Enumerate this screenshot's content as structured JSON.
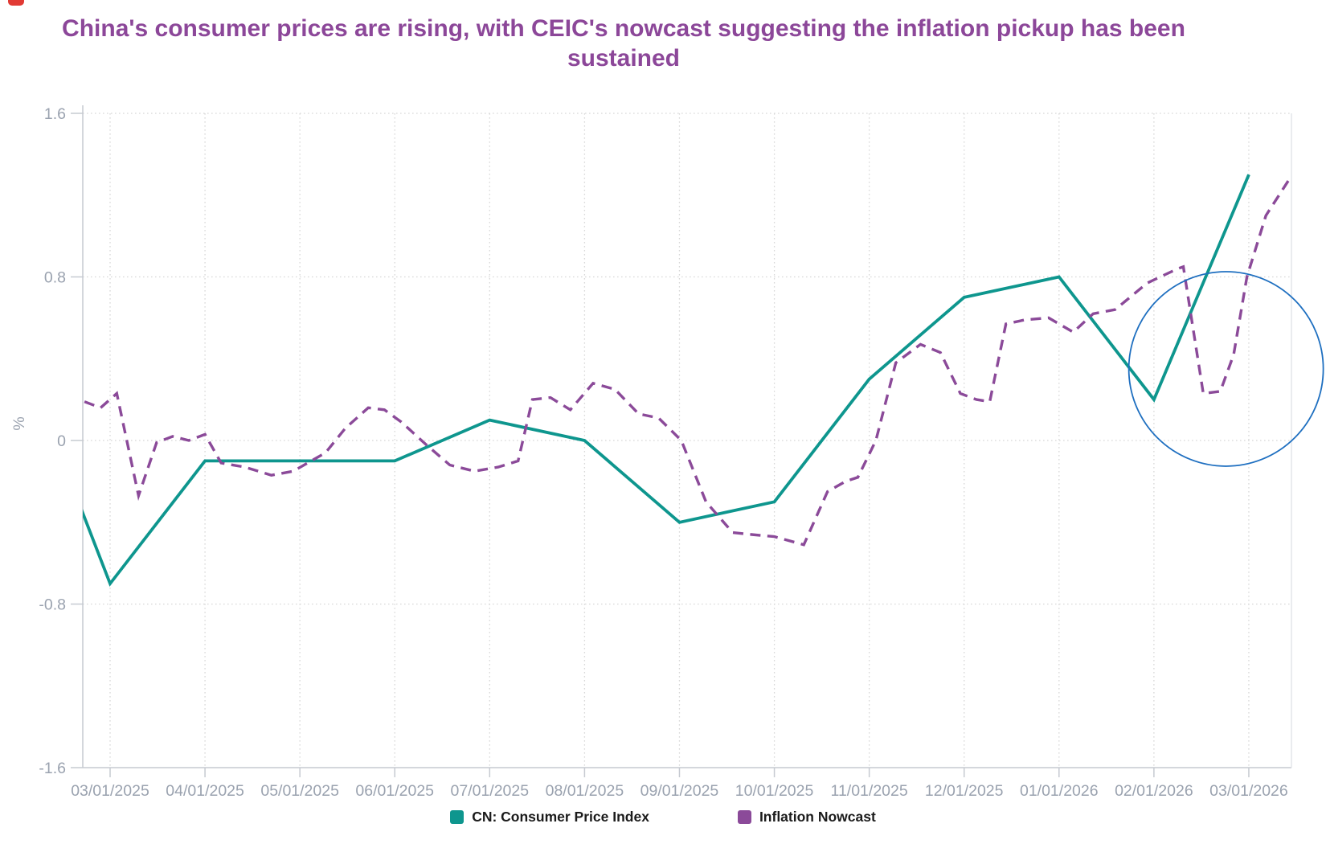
{
  "title": "China's consumer prices are rising, with CEIC's nowcast suggesting the inflation pickup has been sustained",
  "title_color": "#8c4799",
  "logo_mark_color": "#e13a34",
  "legend": [
    {
      "label": "CN: Consumer Price Index",
      "color": "#0e968e"
    },
    {
      "label": "Inflation Nowcast",
      "color": "#8b4a99"
    }
  ],
  "chart_data": {
    "type": "line",
    "title": "China's consumer prices are rising, with CEIC's nowcast suggesting the inflation pickup has been sustained",
    "xlabel": "",
    "ylabel": "%",
    "ylim": [
      -1.6,
      1.6
    ],
    "grid": "dotted-both",
    "legend_position": "bottom",
    "ytick_values": [
      1.6,
      0.8,
      0,
      -0.8,
      -1.6
    ],
    "ytick_labels": [
      "1.6",
      "0.8",
      "0",
      "-0.8",
      "-1.6"
    ],
    "categories": [
      "03/01/2025",
      "04/01/2025",
      "05/01/2025",
      "06/01/2025",
      "07/01/2025",
      "08/01/2025",
      "09/01/2025",
      "10/01/2025",
      "11/01/2025",
      "12/01/2025",
      "01/01/2026",
      "02/01/2026",
      "03/01/2026"
    ],
    "series": [
      {
        "name": "CN: Consumer Price Index",
        "color": "#0e968e",
        "style": "solid",
        "width": 3.8,
        "x_unit": "months from 03/01/2025 (fractional; -1 point clipped at plot edge)",
        "points": [
          [
            -1,
            0.5
          ],
          [
            0,
            -0.7
          ],
          [
            1,
            -0.1
          ],
          [
            2,
            -0.1
          ],
          [
            3,
            -0.1
          ],
          [
            4,
            0.1
          ],
          [
            5,
            0.0
          ],
          [
            6,
            -0.4
          ],
          [
            7,
            -0.3
          ],
          [
            8,
            0.3
          ],
          [
            9,
            0.7
          ],
          [
            10,
            0.8
          ],
          [
            11,
            0.2
          ],
          [
            12,
            1.3
          ]
        ]
      },
      {
        "name": "Inflation Nowcast",
        "color": "#8b4a99",
        "style": "dashed",
        "width": 3.4,
        "x_unit": "months from 03/01/2025 (fractional, ~weekly nowcast)",
        "points": [
          [
            -0.27,
            0.19
          ],
          [
            -0.1,
            0.16
          ],
          [
            0.07,
            0.23
          ],
          [
            0.3,
            -0.27
          ],
          [
            0.49,
            -0.01
          ],
          [
            0.66,
            0.02
          ],
          [
            0.83,
            0.0
          ],
          [
            1.0,
            0.03
          ],
          [
            1.17,
            -0.11
          ],
          [
            1.42,
            -0.13
          ],
          [
            1.7,
            -0.17
          ],
          [
            1.93,
            -0.15
          ],
          [
            2.27,
            -0.06
          ],
          [
            2.48,
            0.06
          ],
          [
            2.72,
            0.16
          ],
          [
            2.89,
            0.15
          ],
          [
            3.07,
            0.09
          ],
          [
            3.33,
            -0.02
          ],
          [
            3.58,
            -0.12
          ],
          [
            3.84,
            -0.15
          ],
          [
            4.09,
            -0.13
          ],
          [
            4.3,
            -0.1
          ],
          [
            4.45,
            0.2
          ],
          [
            4.64,
            0.21
          ],
          [
            4.85,
            0.15
          ],
          [
            5.09,
            0.28
          ],
          [
            5.32,
            0.25
          ],
          [
            5.57,
            0.13
          ],
          [
            5.78,
            0.11
          ],
          [
            6.02,
            0.0
          ],
          [
            6.28,
            -0.3
          ],
          [
            6.56,
            -0.45
          ],
          [
            6.76,
            -0.46
          ],
          [
            7.0,
            -0.47
          ],
          [
            7.31,
            -0.51
          ],
          [
            7.56,
            -0.25
          ],
          [
            7.75,
            -0.2
          ],
          [
            7.88,
            -0.18
          ],
          [
            8.07,
            0.0
          ],
          [
            8.28,
            0.38
          ],
          [
            8.54,
            0.47
          ],
          [
            8.75,
            0.43
          ],
          [
            8.96,
            0.23
          ],
          [
            9.13,
            0.2
          ],
          [
            9.27,
            0.19
          ],
          [
            9.44,
            0.57
          ],
          [
            9.64,
            0.59
          ],
          [
            9.89,
            0.6
          ],
          [
            10.15,
            0.53
          ],
          [
            10.36,
            0.62
          ],
          [
            10.59,
            0.64
          ],
          [
            10.93,
            0.77
          ],
          [
            11.25,
            0.84
          ],
          [
            11.31,
            0.85
          ],
          [
            11.52,
            0.23
          ],
          [
            11.7,
            0.24
          ],
          [
            11.84,
            0.42
          ],
          [
            11.98,
            0.8
          ],
          [
            12.18,
            1.1
          ],
          [
            12.43,
            1.28
          ]
        ]
      }
    ],
    "annotation_circle": {
      "center_month": 11.76,
      "center_value": 0.35,
      "radius_px": 121,
      "color": "#1e6fc0"
    },
    "colors": {
      "gridline": "#d8d8d8",
      "axis": "#c6cad1",
      "tick_label": "#9aa2af"
    }
  }
}
